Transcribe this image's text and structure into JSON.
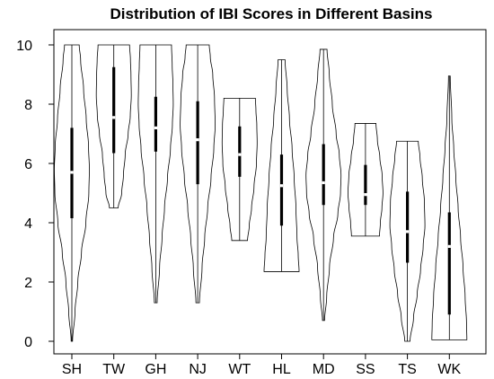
{
  "chart_data": {
    "type": "violin",
    "title": "Distribution of IBI Scores in Different Basins",
    "xlabel": "",
    "ylabel": "",
    "ylim": [
      0,
      10
    ],
    "yticks": [
      0,
      2,
      4,
      6,
      8,
      10
    ],
    "grid": false,
    "categories": [
      "SH",
      "TW",
      "GH",
      "NJ",
      "WT",
      "HL",
      "MD",
      "SS",
      "TS",
      "WK"
    ],
    "series": [
      {
        "category": "SH",
        "min": 0.0,
        "q1": 4.15,
        "median": 5.7,
        "q3": 7.2,
        "max": 10.0,
        "density": [
          [
            0.0,
            0.04
          ],
          [
            1.0,
            0.18
          ],
          [
            2.0,
            0.34
          ],
          [
            3.0,
            0.55
          ],
          [
            4.0,
            0.8
          ],
          [
            5.0,
            0.97
          ],
          [
            5.8,
            1.0
          ],
          [
            6.6,
            0.95
          ],
          [
            7.5,
            0.82
          ],
          [
            8.5,
            0.67
          ],
          [
            9.5,
            0.5
          ],
          [
            10.0,
            0.42
          ]
        ]
      },
      {
        "category": "TW",
        "min": 4.5,
        "q1": 6.35,
        "median": 7.55,
        "q3": 9.25,
        "max": 10.0,
        "density": [
          [
            4.5,
            0.25
          ],
          [
            5.0,
            0.45
          ],
          [
            5.6,
            0.55
          ],
          [
            6.3,
            0.65
          ],
          [
            7.0,
            0.82
          ],
          [
            7.6,
            0.94
          ],
          [
            8.3,
            1.0
          ],
          [
            9.0,
            0.98
          ],
          [
            9.5,
            0.95
          ],
          [
            10.0,
            0.9
          ]
        ]
      },
      {
        "category": "GH",
        "min": 1.3,
        "q1": 6.4,
        "median": 7.2,
        "q3": 8.25,
        "max": 10.0,
        "density": [
          [
            1.3,
            0.08
          ],
          [
            2.5,
            0.22
          ],
          [
            3.5,
            0.36
          ],
          [
            4.5,
            0.5
          ],
          [
            5.5,
            0.67
          ],
          [
            6.5,
            0.84
          ],
          [
            7.3,
            0.95
          ],
          [
            8.0,
            1.0
          ],
          [
            8.7,
            0.98
          ],
          [
            9.3,
            0.94
          ],
          [
            10.0,
            0.9
          ]
        ]
      },
      {
        "category": "NJ",
        "min": 1.3,
        "q1": 5.3,
        "median": 6.8,
        "q3": 8.1,
        "max": 10.0,
        "density": [
          [
            1.3,
            0.1
          ],
          [
            2.5,
            0.25
          ],
          [
            3.5,
            0.4
          ],
          [
            4.5,
            0.57
          ],
          [
            5.5,
            0.76
          ],
          [
            6.5,
            0.92
          ],
          [
            7.3,
            1.0
          ],
          [
            8.2,
            0.96
          ],
          [
            9.0,
            0.86
          ],
          [
            9.6,
            0.72
          ],
          [
            10.0,
            0.66
          ]
        ]
      },
      {
        "category": "WT",
        "min": 3.4,
        "q1": 5.55,
        "median": 6.3,
        "q3": 7.25,
        "max": 8.2,
        "density": [
          [
            3.4,
            0.45
          ],
          [
            3.9,
            0.55
          ],
          [
            4.5,
            0.68
          ],
          [
            5.2,
            0.82
          ],
          [
            6.0,
            0.96
          ],
          [
            6.7,
            1.0
          ],
          [
            7.3,
            0.98
          ],
          [
            7.8,
            0.93
          ],
          [
            8.2,
            0.9
          ]
        ]
      },
      {
        "category": "HL",
        "min": 2.35,
        "q1": 3.9,
        "median": 5.25,
        "q3": 6.3,
        "max": 9.5,
        "density": [
          [
            2.35,
            1.0
          ],
          [
            2.9,
            0.95
          ],
          [
            3.5,
            0.88
          ],
          [
            4.5,
            0.82
          ],
          [
            5.5,
            0.72
          ],
          [
            6.5,
            0.6
          ],
          [
            7.5,
            0.45
          ],
          [
            8.5,
            0.32
          ],
          [
            9.5,
            0.2
          ]
        ]
      },
      {
        "category": "MD",
        "min": 0.7,
        "q1": 4.6,
        "median": 5.35,
        "q3": 6.65,
        "max": 9.85,
        "density": [
          [
            0.7,
            0.06
          ],
          [
            1.5,
            0.18
          ],
          [
            2.5,
            0.34
          ],
          [
            3.5,
            0.57
          ],
          [
            4.3,
            0.82
          ],
          [
            5.0,
            0.97
          ],
          [
            5.6,
            1.0
          ],
          [
            6.3,
            0.9
          ],
          [
            7.0,
            0.72
          ],
          [
            8.0,
            0.5
          ],
          [
            9.0,
            0.33
          ],
          [
            9.85,
            0.2
          ]
        ]
      },
      {
        "category": "SS",
        "min": 3.55,
        "q1": 4.6,
        "median": 4.95,
        "q3": 5.95,
        "max": 7.35,
        "density": [
          [
            3.55,
            0.8
          ],
          [
            4.0,
            0.85
          ],
          [
            4.5,
            0.94
          ],
          [
            5.0,
            1.0
          ],
          [
            5.6,
            0.95
          ],
          [
            6.2,
            0.82
          ],
          [
            6.8,
            0.68
          ],
          [
            7.35,
            0.6
          ]
        ]
      },
      {
        "category": "TS",
        "min": 0.0,
        "q1": 2.65,
        "median": 3.7,
        "q3": 5.05,
        "max": 6.75,
        "density": [
          [
            0.0,
            0.15
          ],
          [
            0.8,
            0.35
          ],
          [
            1.6,
            0.56
          ],
          [
            2.4,
            0.75
          ],
          [
            3.2,
            0.9
          ],
          [
            3.9,
            1.0
          ],
          [
            4.7,
            0.97
          ],
          [
            5.5,
            0.85
          ],
          [
            6.2,
            0.72
          ],
          [
            6.75,
            0.62
          ]
        ]
      },
      {
        "category": "WK",
        "min": 0.05,
        "q1": 0.9,
        "median": 3.2,
        "q3": 4.35,
        "max": 8.95,
        "density": [
          [
            0.05,
            1.0
          ],
          [
            0.6,
            0.98
          ],
          [
            1.5,
            0.9
          ],
          [
            2.5,
            0.78
          ],
          [
            3.5,
            0.64
          ],
          [
            4.5,
            0.5
          ],
          [
            5.5,
            0.37
          ],
          [
            6.5,
            0.25
          ],
          [
            7.5,
            0.14
          ],
          [
            8.95,
            0.05
          ]
        ]
      }
    ]
  }
}
